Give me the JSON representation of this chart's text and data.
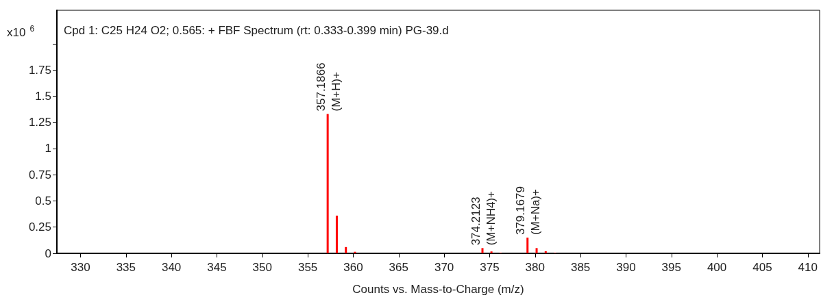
{
  "chart_data": {
    "type": "bar",
    "title": "Cpd 1: C25 H24 O2; 0.565: + FBF Spectrum (rt: 0.333-0.399 min) PG-39.d",
    "xlabel": "Counts vs. Mass-to-Charge (m/z)",
    "ylabel": "x10$^{6}$",
    "x": [
      357.1866,
      358.19,
      359.19,
      360.19,
      374.2123,
      375.2,
      376.2,
      379.1679,
      380.17,
      381.17,
      382.2
    ],
    "series": [
      {
        "color": "#ff0000",
        "values": [
          1.33,
          0.36,
          0.06,
          0.015,
          0.05,
          0.018,
          0.005,
          0.15,
          0.05,
          0.02,
          0.005
        ]
      }
    ],
    "xlim": [
      327.4,
      411.3
    ],
    "xticks": [
      330,
      335,
      340,
      345,
      350,
      355,
      360,
      365,
      370,
      375,
      380,
      385,
      390,
      395,
      400,
      405,
      410
    ],
    "ylim": [
      0,
      2.32
    ],
    "yticks": [
      0,
      0.25,
      0.5,
      0.75,
      1,
      1.25,
      1.5,
      1.75,
      {
        "value": 2,
        "label": null
      }
    ],
    "grid": false,
    "annotations": [
      {
        "text": "357.1866\n(M+H)+",
        "x": 357.1866,
        "y": 1.33
      },
      {
        "text": "374.2123\n(M+NH4)+",
        "x": 374.2123,
        "y": 0.05
      },
      {
        "text": "379.1679\n(M+Na)+",
        "x": 379.1679,
        "y": 0.15
      }
    ]
  }
}
